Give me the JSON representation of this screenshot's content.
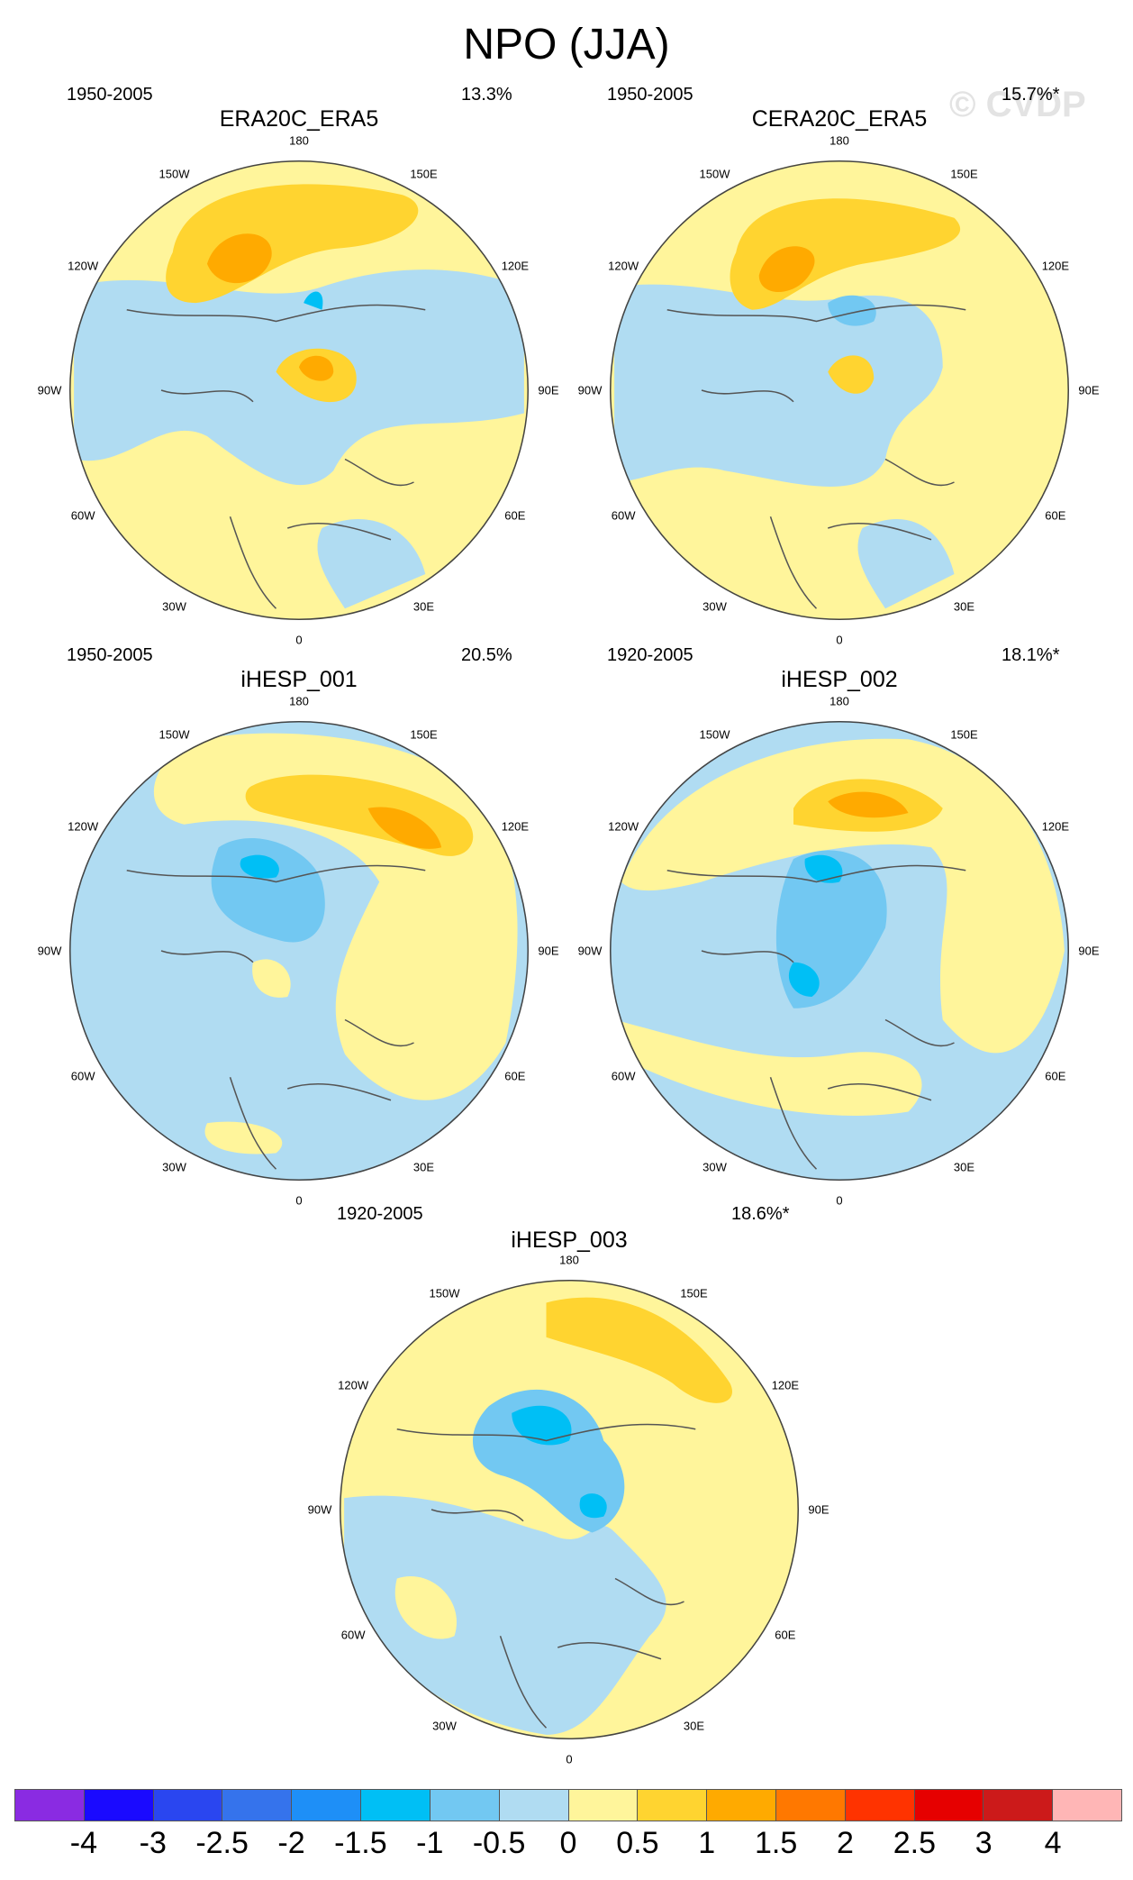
{
  "title": "NPO (JJA)",
  "watermark": "© CVDP",
  "lon_labels": [
    "180",
    "150E",
    "120E",
    "90E",
    "60E",
    "30E",
    "0",
    "30W",
    "60W",
    "90W",
    "120W",
    "150W"
  ],
  "panels": [
    {
      "title": "ERA20C_ERA5",
      "years": "1950-2005",
      "pct": "13.3%"
    },
    {
      "title": "CERA20C_ERA5",
      "years": "1950-2005",
      "pct": "15.7%*"
    },
    {
      "title": "iHESP_001",
      "years": "1950-2005",
      "pct": "20.5%"
    },
    {
      "title": "iHESP_002",
      "years": "1920-2005",
      "pct": "18.1%*"
    },
    {
      "title": "iHESP_003",
      "years": "1920-2005",
      "pct": "18.6%*"
    }
  ],
  "colorbar": {
    "labels": [
      "-4",
      "-3",
      "-2.5",
      "-2",
      "-1.5",
      "-1",
      "-0.5",
      "0",
      "0.5",
      "1",
      "1.5",
      "2",
      "2.5",
      "3",
      "4"
    ],
    "colors": [
      "#8a2be2",
      "#1a0aff",
      "#2a46f0",
      "#3573ec",
      "#1e8ff7",
      "#00bff5",
      "#72c8f2",
      "#b0dcf2",
      "#fff59b",
      "#ffd430",
      "#ffaa00",
      "#ff7800",
      "#ff3300",
      "#e60000",
      "#cc1a1a",
      "#ffb6b6"
    ]
  }
}
